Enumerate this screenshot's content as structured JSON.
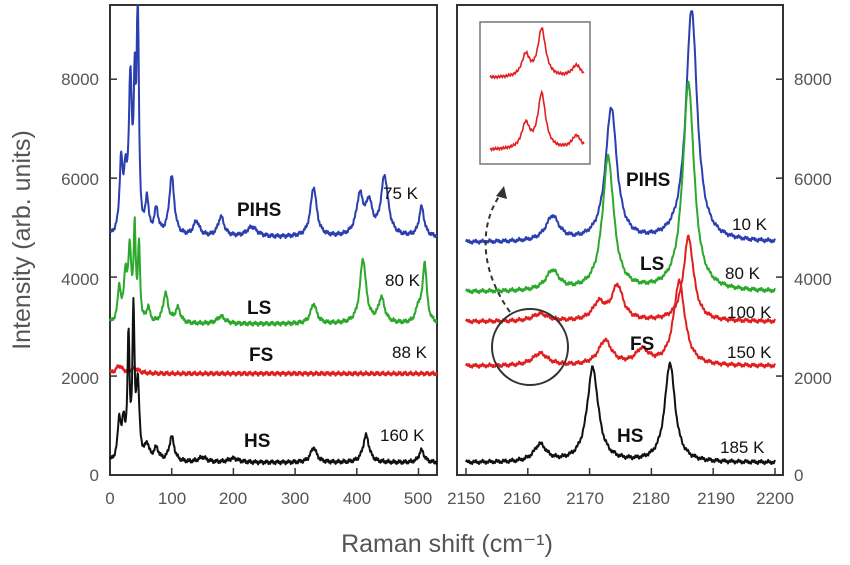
{
  "chart_data": {
    "type": "line",
    "ylabel": "Intensity (arb. units)",
    "xlabel": "Raman shift (cm⁻¹)",
    "panels": [
      {
        "name": "left",
        "xlim": [
          0,
          530
        ],
        "ylim": [
          0,
          9500
        ],
        "xticks": [
          "0",
          "100",
          "200",
          "300",
          "400",
          "500"
        ],
        "yticks": [
          "0",
          "2000",
          "4000",
          "6000",
          "8000"
        ],
        "y_axis_side": "left",
        "series": [
          {
            "state": "PIHS",
            "temperature": "75 K",
            "color": "#2b3fb0",
            "baseline": 4800,
            "peaks": [
              [
                18,
                1400,
                3
              ],
              [
                25,
                1000,
                3
              ],
              [
                33,
                3000,
                3
              ],
              [
                40,
                2500,
                2
              ],
              [
                45,
                4700,
                2
              ],
              [
                60,
                700,
                3
              ],
              [
                75,
                500,
                4
              ],
              [
                100,
                1200,
                5
              ],
              [
                140,
                300,
                6
              ],
              [
                180,
                400,
                6
              ],
              [
                230,
                200,
                10
              ],
              [
                330,
                1000,
                6
              ],
              [
                405,
                800,
                7
              ],
              [
                420,
                600,
                6
              ],
              [
                445,
                1200,
                7
              ],
              [
                505,
                600,
                5
              ]
            ]
          },
          {
            "state": "LS",
            "temperature": "80 K",
            "color": "#2ca82c",
            "baseline": 3050,
            "peaks": [
              [
                15,
                700,
                3
              ],
              [
                25,
                900,
                3
              ],
              [
                32,
                1400,
                3
              ],
              [
                40,
                1800,
                2
              ],
              [
                47,
                1500,
                2
              ],
              [
                62,
                300,
                3
              ],
              [
                90,
                600,
                5
              ],
              [
                110,
                300,
                5
              ],
              [
                180,
                150,
                8
              ],
              [
                330,
                400,
                6
              ],
              [
                410,
                1300,
                6
              ],
              [
                440,
                500,
                6
              ],
              [
                500,
                300,
                5
              ],
              [
                510,
                1200,
                4
              ]
            ]
          },
          {
            "state": "FS",
            "temperature": "88 K",
            "color": "#e02020",
            "baseline": 2050,
            "peaks": [
              [
                15,
                150,
                6
              ],
              [
                40,
                100,
                8
              ]
            ]
          },
          {
            "state": "HS",
            "temperature": "160 K",
            "color": "#111111",
            "baseline": 250,
            "peaks": [
              [
                15,
                800,
                3
              ],
              [
                22,
                700,
                3
              ],
              [
                30,
                2400,
                2
              ],
              [
                38,
                2900,
                2
              ],
              [
                45,
                1500,
                3
              ],
              [
                60,
                300,
                4
              ],
              [
                75,
                250,
                5
              ],
              [
                100,
                500,
                5
              ],
              [
                150,
                100,
                8
              ],
              [
                200,
                80,
                10
              ],
              [
                330,
                300,
                6
              ],
              [
                415,
                550,
                6
              ],
              [
                505,
                250,
                5
              ]
            ]
          }
        ]
      },
      {
        "name": "right",
        "xlim": [
          2150,
          2200
        ],
        "ylim": [
          0,
          9500
        ],
        "xticks": [
          "2150",
          "2160",
          "2170",
          "2180",
          "2190",
          "2200"
        ],
        "yticks": [
          "0",
          "2000",
          "4000",
          "6000",
          "8000"
        ],
        "y_axis_side": "right",
        "series": [
          {
            "state": "PIHS",
            "temperature": "10 K",
            "color": "#2b3fb0",
            "baseline": 4700,
            "peaks": [
              [
                2164,
                500,
                1.3
              ],
              [
                2173.5,
                2700,
                1.1
              ],
              [
                2186.5,
                4700,
                1.1
              ]
            ]
          },
          {
            "state": "LS",
            "temperature": "80 K",
            "color": "#2ca82c",
            "baseline": 3700,
            "peaks": [
              [
                2164,
                400,
                1.3
              ],
              [
                2173,
                2700,
                1.1
              ],
              [
                2186,
                4200,
                1.1
              ]
            ]
          },
          {
            "state": "",
            "temperature": "100 K",
            "color": "#e02020",
            "baseline": 3100,
            "peaks": [
              [
                2162,
                150,
                1.5
              ],
              [
                2171.5,
                350,
                1.2
              ],
              [
                2174.5,
                700,
                1.1
              ],
              [
                2186,
                1700,
                1.0
              ]
            ]
          },
          {
            "state": "FS",
            "temperature": "150 K",
            "color": "#e02020",
            "baseline": 2200,
            "peaks": [
              [
                2162,
                250,
                1.5
              ],
              [
                2172.5,
                500,
                1.3
              ],
              [
                2178.5,
                300,
                1.3
              ],
              [
                2184.5,
                1700,
                1.1
              ]
            ]
          },
          {
            "state": "HS",
            "temperature": "185 K",
            "color": "#111111",
            "baseline": 250,
            "peaks": [
              [
                2162,
                350,
                1.2
              ],
              [
                2170.5,
                1900,
                1.1
              ],
              [
                2183,
                2000,
                1.0
              ]
            ]
          }
        ]
      }
    ]
  }
}
